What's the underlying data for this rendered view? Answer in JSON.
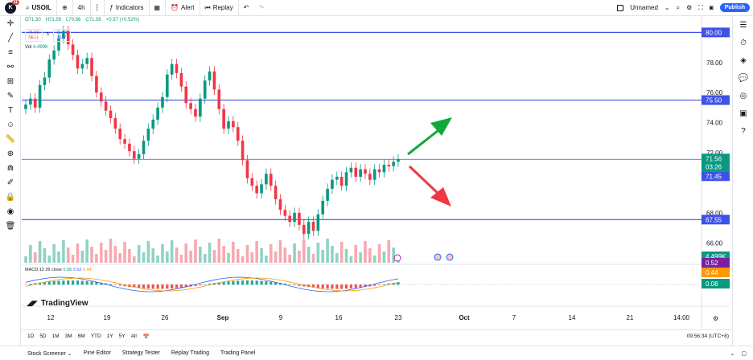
{
  "topbar": {
    "logo_letter": "K",
    "logo_badge": "11",
    "symbol": "USOIL",
    "interval": "4h",
    "indicators_label": "Indicators",
    "alert_label": "Alert",
    "replay_label": "Replay",
    "layout_name": "Unnamed",
    "publish_label": "Publish"
  },
  "legend": {
    "open": "O71.30",
    "high": "H71.59",
    "low": "L70.86",
    "close": "C71.56",
    "change": "+0.37 (+0.52%)",
    "sell_price": "71.55",
    "sell_label": "SELL",
    "spread": "5",
    "buy_price": "71.61",
    "buy_label": "BUY",
    "vol_label": "Vol",
    "vol_value": "4.499K",
    "macd_label": "MACD 12 26 close",
    "macd_values": [
      "0.08",
      "0.52",
      "0.44"
    ]
  },
  "chart_data": {
    "type": "candlestick",
    "x_ticks": [
      "12",
      "19",
      "26",
      "Sep",
      "9",
      "16",
      "23",
      "Oct",
      "7",
      "14",
      "21",
      "14:00"
    ],
    "y_ticks": [
      "78.00",
      "76.00",
      "74.00",
      "72.00",
      "68.00",
      "66.00"
    ],
    "ylim": [
      65.0,
      80.5
    ],
    "horizontal_lines": [
      80.0,
      75.5,
      71.56,
      67.55
    ],
    "price_tags": [
      {
        "label": "80.00",
        "color": "#3f51e6"
      },
      {
        "label": "75.50",
        "color": "#3f51e6"
      },
      {
        "label": "71.56",
        "color": "#089981"
      },
      {
        "label": "03:26",
        "color": "#089981"
      },
      {
        "label": "71.45",
        "color": "#3f51e6"
      },
      {
        "label": "67.55",
        "color": "#3f51e6"
      },
      {
        "label": "4.499K",
        "color": "#089981"
      },
      {
        "label": "0.52",
        "color": "#7b1fa2"
      },
      {
        "label": "0.44",
        "color": "#ff9800"
      },
      {
        "label": "0.08",
        "color": "#089981"
      }
    ],
    "closes": [
      75.2,
      75.6,
      75.0,
      76.5,
      77.0,
      78.2,
      78.8,
      79.6,
      80.1,
      79.2,
      78.5,
      77.6,
      77.9,
      78.3,
      77.1,
      76.0,
      75.4,
      74.8,
      74.3,
      73.6,
      72.9,
      72.6,
      72.1,
      71.6,
      71.9,
      72.8,
      73.6,
      74.2,
      75.0,
      75.7,
      77.2,
      77.9,
      77.3,
      76.4,
      75.3,
      74.9,
      74.4,
      75.6,
      76.8,
      77.4,
      76.2,
      74.9,
      73.6,
      74.1,
      73.7,
      72.8,
      71.5,
      70.3,
      69.8,
      69.3,
      69.9,
      70.6,
      69.8,
      68.9,
      68.2,
      67.8,
      67.4,
      68.0,
      67.2,
      66.6,
      67.4,
      66.8,
      67.9,
      68.8,
      69.6,
      70.2,
      70.4,
      69.8,
      70.7,
      71.0,
      70.4,
      70.9,
      70.6,
      70.2,
      70.9,
      70.7,
      71.2,
      71.1,
      71.4,
      71.56
    ],
    "up_color": "#089981",
    "down_color": "#f23645",
    "arrow_up_color": "#11a839",
    "arrow_down_color": "#f23645"
  },
  "bottom": {
    "ranges": [
      "1D",
      "5D",
      "1M",
      "3M",
      "6M",
      "YTD",
      "1Y",
      "5Y",
      "All"
    ],
    "clock": "09:56:34 (UTC+8)"
  },
  "panels": [
    "Stock Screener",
    "Pine Editor",
    "Strategy Tester",
    "Replay Trading",
    "Trading Panel"
  ],
  "branding": "TradingView"
}
